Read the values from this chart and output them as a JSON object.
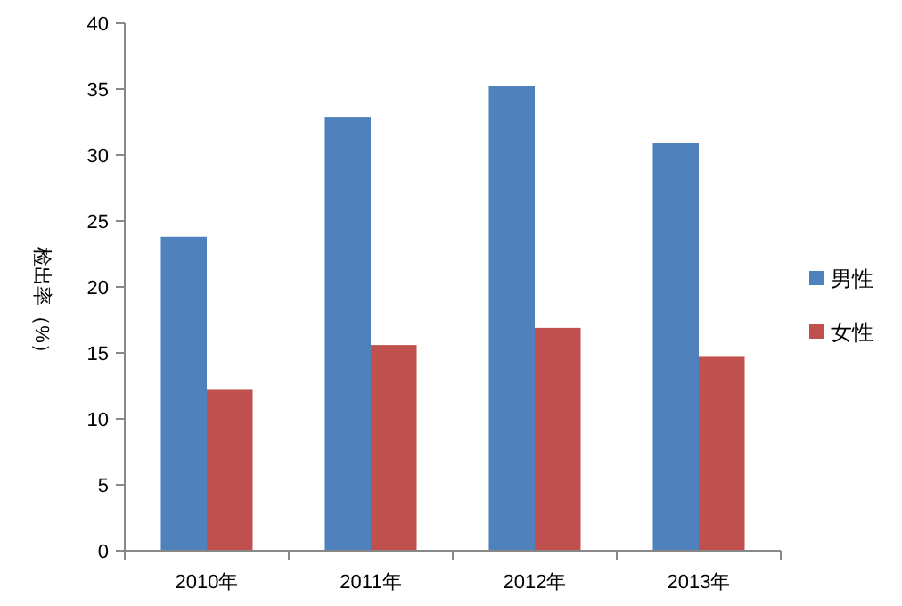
{
  "chart_data": {
    "type": "bar",
    "ylabel": "检出率（%）",
    "categories": [
      "2010年",
      "2011年",
      "2012年",
      "2013年"
    ],
    "series": [
      {
        "name": "男性",
        "color": "#4f81bd",
        "values": [
          23.8,
          32.9,
          35.2,
          30.9
        ]
      },
      {
        "name": "女性",
        "color": "#c0504d",
        "values": [
          12.2,
          15.6,
          16.9,
          14.7
        ]
      }
    ],
    "ylim": [
      0,
      40
    ],
    "yticks": [
      0,
      5,
      10,
      15,
      20,
      25,
      30,
      35,
      40
    ],
    "grid": false,
    "legend": "right"
  }
}
